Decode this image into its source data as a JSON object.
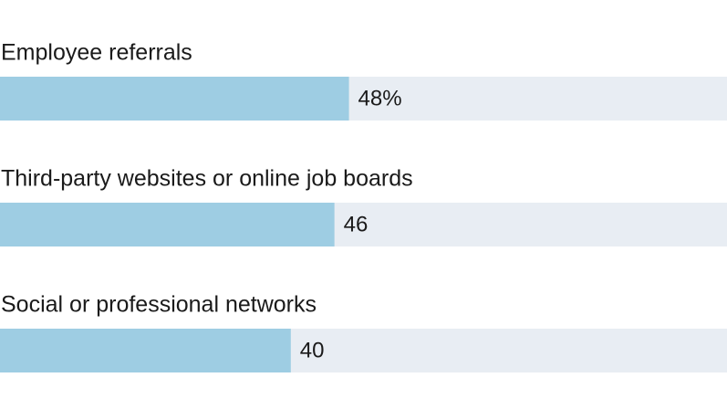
{
  "chart_data": {
    "type": "bar",
    "orientation": "horizontal",
    "categories": [
      "Employee referrals",
      "Third-party websites or online job boards",
      "Social or professional networks"
    ],
    "values": [
      48,
      46,
      40
    ],
    "value_labels": [
      "48%",
      "46",
      "40"
    ],
    "color": "#9ecde3",
    "track_color": "#e8edf3",
    "xlim": [
      0,
      100
    ]
  }
}
